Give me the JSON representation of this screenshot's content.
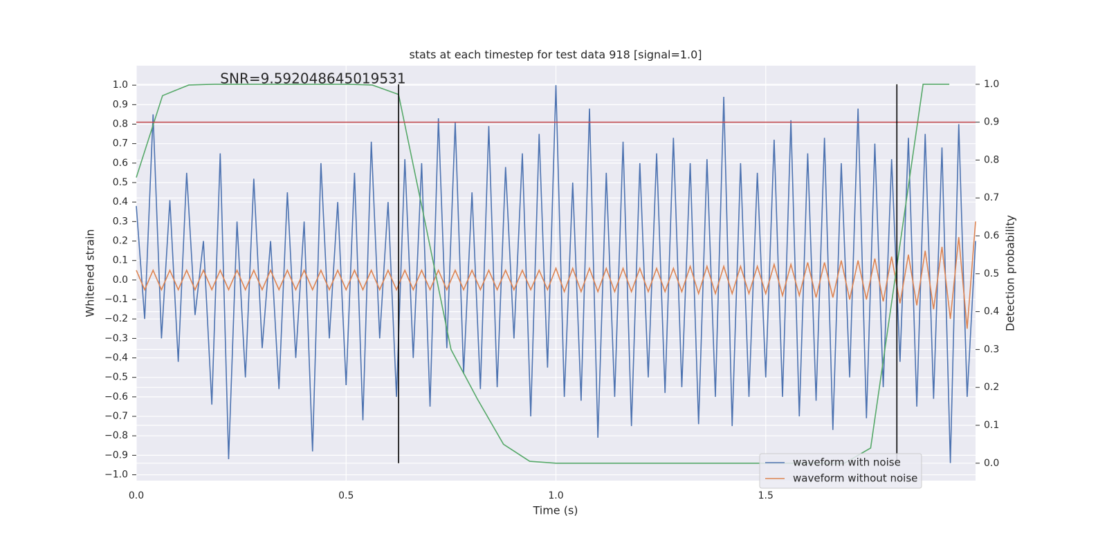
{
  "chart_data": {
    "type": "line",
    "title": "stats at each timestep for test data 918 [signal=1.0]",
    "x_label": "Time (s)",
    "y_label": "Whitened strain",
    "y2_label": "Detection probability",
    "annotation": {
      "text": "SNR=9.592048645019531",
      "x": 0.2,
      "y": 1.0
    },
    "xlim": [
      0,
      2.0
    ],
    "ylim": [
      -1.03,
      1.1
    ],
    "y2lim": [
      -0.046,
      1.049
    ],
    "xticks": [
      {
        "value": 0,
        "label": "0.0"
      },
      0.5,
      {
        "value": 1,
        "label": "1.0"
      },
      1.5
    ],
    "yticks": [
      {
        "value": -1,
        "label": "−1.0"
      },
      {
        "value": -0.9,
        "label": "−0.9"
      },
      {
        "value": -0.8,
        "label": "−0.8"
      },
      {
        "value": -0.7,
        "label": "−0.7"
      },
      {
        "value": -0.6,
        "label": "−0.6"
      },
      {
        "value": -0.5,
        "label": "−0.5"
      },
      {
        "value": -0.4,
        "label": "−0.4"
      },
      {
        "value": -0.3,
        "label": "−0.3"
      },
      {
        "value": -0.2,
        "label": "−0.2"
      },
      {
        "value": -0.1,
        "label": "−0.1"
      },
      {
        "value": 0,
        "label": "0.0"
      },
      0.1,
      0.2,
      0.3,
      0.4,
      0.5,
      0.6,
      0.7,
      0.8,
      0.9,
      {
        "value": 1,
        "label": "1.0"
      }
    ],
    "y2ticks": [
      {
        "value": 0,
        "label": "0.0"
      },
      0.1,
      0.2,
      0.3,
      0.4,
      0.5,
      0.6,
      0.7,
      0.8,
      0.9,
      {
        "value": 1,
        "label": "1.0"
      }
    ],
    "grid": true,
    "legend": "lower right",
    "x": [
      0,
      0.02,
      0.04,
      0.06,
      0.08,
      0.1,
      0.12,
      0.14,
      0.16,
      0.18,
      0.2,
      0.22,
      0.24,
      0.26,
      0.28,
      0.3,
      0.32,
      0.34,
      0.36,
      0.38,
      0.4,
      0.42,
      0.44,
      0.46,
      0.48,
      0.5,
      0.52,
      0.54,
      0.56,
      0.58,
      0.6,
      0.62,
      0.64,
      0.66,
      0.68,
      0.7,
      0.72,
      0.74,
      0.76,
      0.78,
      0.8,
      0.82,
      0.84,
      0.86,
      0.88,
      0.9,
      0.92,
      0.94,
      0.96,
      0.98,
      1.0,
      1.02,
      1.04,
      1.06,
      1.08,
      1.1,
      1.12,
      1.14,
      1.16,
      1.18,
      1.2,
      1.22,
      1.24,
      1.26,
      1.28,
      1.3,
      1.32,
      1.34,
      1.36,
      1.38,
      1.4,
      1.42,
      1.44,
      1.46,
      1.48,
      1.5,
      1.52,
      1.54,
      1.56,
      1.58,
      1.6,
      1.62,
      1.64,
      1.66,
      1.68,
      1.7,
      1.72,
      1.74,
      1.76,
      1.78,
      1.8,
      1.82,
      1.84,
      1.86,
      1.88,
      1.9,
      1.92,
      1.94,
      1.96,
      1.98,
      2.0
    ],
    "series": [
      {
        "name": "waveform with noise",
        "color": "#4c72b0",
        "values": [
          0.38,
          -0.2,
          0.85,
          -0.3,
          0.41,
          -0.42,
          0.55,
          -0.18,
          0.2,
          -0.64,
          0.65,
          -0.92,
          0.3,
          -0.5,
          0.52,
          -0.35,
          0.2,
          -0.56,
          0.45,
          -0.4,
          0.3,
          -0.88,
          0.6,
          -0.3,
          0.4,
          -0.54,
          0.55,
          -0.72,
          0.71,
          -0.3,
          0.4,
          -0.6,
          0.62,
          -0.4,
          0.6,
          -0.65,
          0.83,
          -0.35,
          0.81,
          -0.48,
          0.45,
          -0.56,
          0.79,
          -0.55,
          0.58,
          -0.3,
          0.65,
          -0.7,
          0.75,
          -0.45,
          1.0,
          -0.6,
          0.5,
          -0.62,
          0.88,
          -0.81,
          0.55,
          -0.6,
          0.71,
          -0.75,
          0.6,
          -0.5,
          0.65,
          -0.58,
          0.73,
          -0.55,
          0.6,
          -0.74,
          0.62,
          -0.6,
          0.94,
          -0.75,
          0.6,
          -0.6,
          0.55,
          -0.5,
          0.72,
          -0.6,
          0.82,
          -0.7,
          0.65,
          -0.62,
          0.73,
          -0.77,
          0.6,
          -0.5,
          0.88,
          -0.71,
          0.7,
          -0.55,
          0.62,
          -0.42,
          0.73,
          -0.65,
          0.75,
          -0.61,
          0.68,
          -0.94,
          0.8,
          -0.6,
          0.2
        ]
      },
      {
        "name": "waveform without noise",
        "color": "#dd8452",
        "values": [
          0.05,
          -0.05,
          0.05,
          -0.05,
          0.05,
          -0.05,
          0.05,
          -0.05,
          0.05,
          -0.05,
          0.05,
          -0.05,
          0.05,
          -0.05,
          0.05,
          -0.05,
          0.05,
          -0.05,
          0.05,
          -0.05,
          0.05,
          -0.05,
          0.05,
          -0.05,
          0.05,
          -0.05,
          0.05,
          -0.05,
          0.05,
          -0.05,
          0.05,
          -0.05,
          0.05,
          -0.05,
          0.05,
          -0.05,
          0.05,
          -0.05,
          0.05,
          -0.05,
          0.05,
          -0.05,
          0.05,
          -0.05,
          0.05,
          -0.05,
          0.05,
          -0.05,
          0.05,
          -0.05,
          0.06,
          -0.06,
          0.06,
          -0.06,
          0.06,
          -0.06,
          0.06,
          -0.06,
          0.06,
          -0.06,
          0.06,
          -0.06,
          0.06,
          -0.06,
          0.06,
          -0.06,
          0.07,
          -0.07,
          0.07,
          -0.07,
          0.07,
          -0.07,
          0.07,
          -0.07,
          0.07,
          -0.07,
          0.08,
          -0.08,
          0.08,
          -0.08,
          0.09,
          -0.09,
          0.09,
          -0.09,
          0.1,
          -0.1,
          0.1,
          -0.1,
          0.11,
          -0.11,
          0.12,
          -0.12,
          0.13,
          -0.13,
          0.15,
          -0.15,
          0.17,
          -0.2,
          0.22,
          -0.25,
          0.3
        ]
      },
      {
        "color": "#55a868",
        "axis": "y2",
        "x": [
          0,
          0.0625,
          0.125,
          0.1875,
          0.25,
          0.3125,
          0.375,
          0.4375,
          0.5,
          0.5625,
          0.625,
          0.6875,
          0.75,
          0.8125,
          0.875,
          0.9375,
          1.0,
          1.0625,
          1.125,
          1.1875,
          1.25,
          1.3125,
          1.375,
          1.4375,
          1.5,
          1.5625,
          1.625,
          1.6875,
          1.75,
          1.8125,
          1.875,
          1.9375
        ],
        "values": [
          0.754,
          0.97,
          0.998,
          1,
          1,
          1,
          1,
          1,
          1,
          0.998,
          0.973,
          0.64,
          0.3,
          0.17,
          0.05,
          0.005,
          0,
          0,
          0,
          0,
          0,
          0,
          0,
          0,
          0,
          0,
          0,
          0,
          0.04,
          0.52,
          1,
          1
        ]
      }
    ],
    "threshold": {
      "value": 0.9,
      "axis": "y2",
      "color": "#c44e52"
    },
    "vlines": {
      "x": [
        0.625,
        1.8125
      ],
      "range": [
        0,
        1
      ],
      "axis": "y2",
      "color": "#000000"
    }
  }
}
